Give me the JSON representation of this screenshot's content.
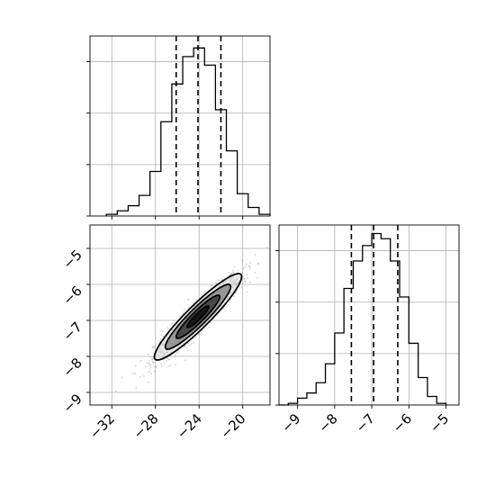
{
  "chart_data": [
    {
      "type": "histogram",
      "panel": "marginal-x",
      "bins": [
        -32.5,
        -31.5,
        -30.5,
        -29.5,
        -28.5,
        -27.5,
        -26.5,
        -25.5,
        -24.5,
        -23.5,
        -22.5,
        -21.5,
        -20.5,
        -19.5,
        -18.5,
        -17.5
      ],
      "counts": [
        0.01,
        0.03,
        0.06,
        0.12,
        0.26,
        0.55,
        0.77,
        0.93,
        0.98,
        0.88,
        0.62,
        0.38,
        0.13,
        0.05,
        0.01
      ],
      "ylim": [
        0,
        1.05
      ],
      "quantiles": [
        -26.1,
        -24.1,
        -22.0
      ],
      "xlim": [
        -34.0,
        -17.5
      ]
    },
    {
      "type": "histogram",
      "panel": "marginal-y",
      "bins": [
        -9.5,
        -9.25,
        -9.0,
        -8.75,
        -8.5,
        -8.25,
        -8.0,
        -7.75,
        -7.5,
        -7.25,
        -7.0,
        -6.75,
        -6.5,
        -6.25,
        -6.0,
        -5.75,
        -5.5,
        -5.25,
        -5.0
      ],
      "counts": [
        0.0,
        0.01,
        0.04,
        0.07,
        0.13,
        0.24,
        0.42,
        0.68,
        0.84,
        0.93,
        1.0,
        0.97,
        0.84,
        0.63,
        0.36,
        0.16,
        0.05,
        0.01
      ],
      "ylim": [
        0,
        1.05
      ],
      "quantiles": [
        -7.55,
        -6.95,
        -6.3
      ],
      "xlim": [
        -9.5,
        -4.65
      ]
    },
    {
      "type": "scatter",
      "panel": "joint",
      "xlim": [
        -34.0,
        -17.5
      ],
      "ylim": [
        -9.35,
        -4.35
      ],
      "xticks": [
        -32,
        -28,
        -24,
        -20
      ],
      "yticks": [
        -5,
        -6,
        -7,
        -8,
        -9
      ],
      "center": [
        -24.1,
        -6.9
      ],
      "std": [
        2.0,
        0.6
      ],
      "correlation": 0.93,
      "contour_levels_sigma": [
        0.5,
        1.0,
        1.5,
        2.0
      ],
      "n_points": 1200
    }
  ],
  "tick_labels": {
    "x_bottom_left": [
      "−32",
      "−28",
      "−24",
      "−20"
    ],
    "y_left": [
      "−5",
      "−6",
      "−7",
      "−8",
      "−9"
    ],
    "x_bottom_right": [
      "−9",
      "−8",
      "−7",
      "−6",
      "−5"
    ]
  },
  "colors": {
    "line": "#000000",
    "grid": "#b0b0b0",
    "points": "#9a9a9a"
  }
}
